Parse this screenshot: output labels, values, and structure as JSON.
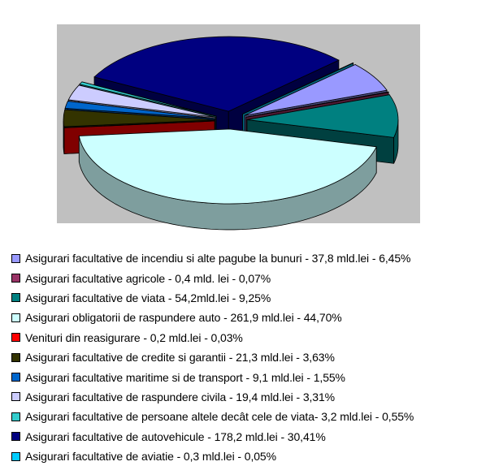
{
  "chart_data": {
    "type": "pie",
    "style": "3d-exploded",
    "legend_position": "bottom",
    "slices": [
      {
        "label": "Asigurari facultative de incendiu si alte pagube la bunuri - 37,8 mld.lei - 6,45%",
        "value": 6.45,
        "color": "#9999ff"
      },
      {
        "label": "Asigurari facultative agricole - 0,4 mld. lei - 0,07%",
        "value": 0.07,
        "color": "#993366"
      },
      {
        "label": "Asigurari facultative de viata - 54,2mld.lei - 9,25%",
        "value": 9.25,
        "color": "#008080"
      },
      {
        "label": "Asigurari obligatorii de raspundere auto - 261,9 mld.lei -  44,70%",
        "value": 44.7,
        "color": "#ccffff"
      },
      {
        "label": "Venituri din reasigurare - 0,2 mld.lei -  0,03%",
        "value": 0.03,
        "color": "#ff0000"
      },
      {
        "label": "Asigurari facultative de credite si garantii - 21,3 mld.lei -  3,63%",
        "value": 3.63,
        "color": "#333300"
      },
      {
        "label": "Asigurari facultative maritime si de transport - 9,1 mld.lei -  1,55%",
        "value": 1.55,
        "color": "#0066cc"
      },
      {
        "label": "Asigurari facultative de raspundere civila - 19,4 mld.lei -  3,31%",
        "value": 3.31,
        "color": "#ccccff"
      },
      {
        "label": "Asigurari facultative de persoane altele decât cele de viata- 3,2 mld.lei - 0,55%",
        "value": 0.55,
        "color": "#33cccc"
      },
      {
        "label": "Asigurari facultative de autovehicule - 178,2 mld.lei -  30,41%",
        "value": 30.41,
        "color": "#000080"
      },
      {
        "label": "Asigurari facultative de aviatie - 0,3 mld.lei -  0,05%",
        "value": 0.05,
        "color": "#00ccff"
      }
    ]
  }
}
